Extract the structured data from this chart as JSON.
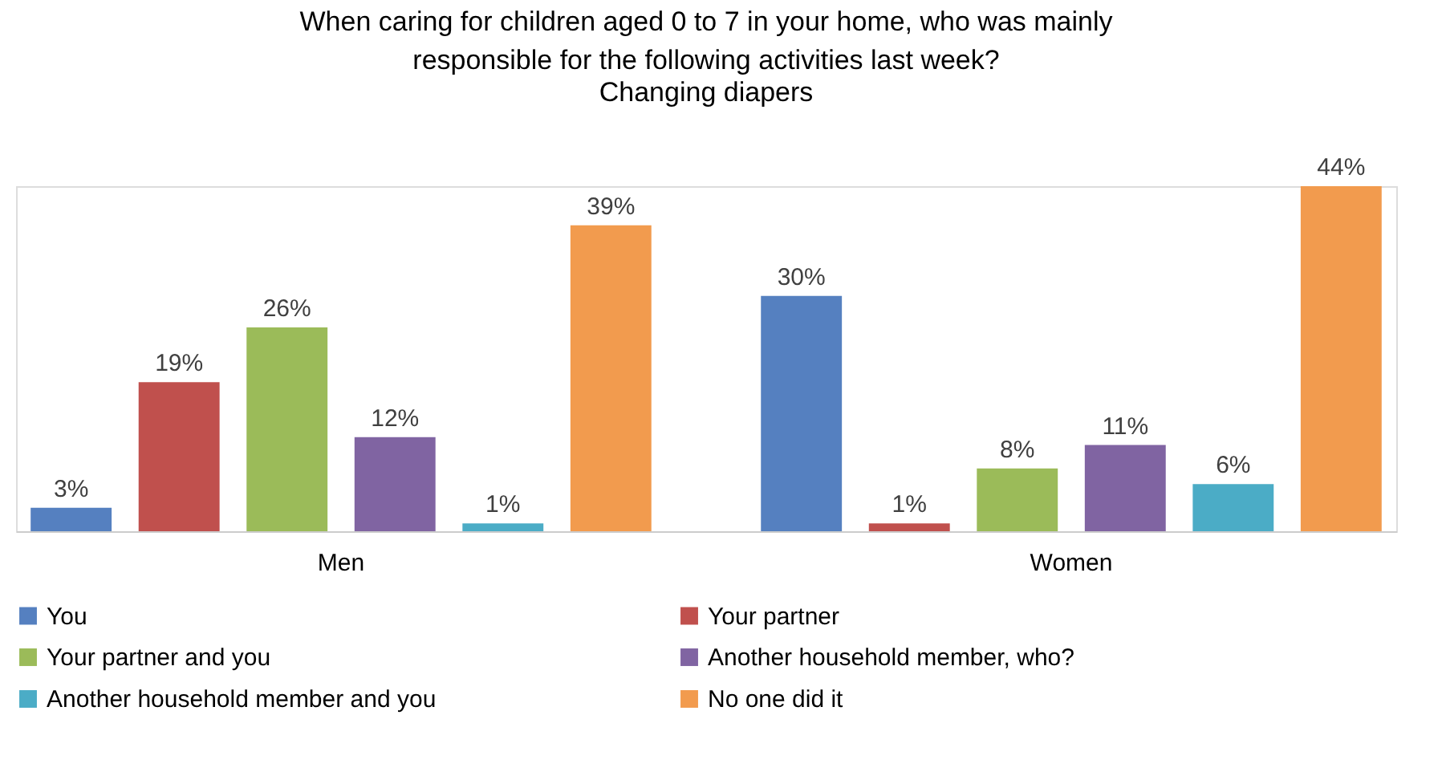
{
  "chart_data": {
    "type": "bar",
    "title": "When caring for children aged 0 to 7 in your home, who was mainly responsible for the following activities last week?",
    "subtitle": "Changing diapers",
    "categories": [
      "Men",
      "Women"
    ],
    "legend": "bottom",
    "grid": false,
    "series": [
      {
        "name": "You",
        "color": "#5580c0",
        "values": [
          3,
          30
        ],
        "value_labels": [
          "3%",
          "30%"
        ]
      },
      {
        "name": "Your partner",
        "color": "#c0504d",
        "values": [
          19,
          1
        ],
        "value_labels": [
          "19%",
          "1%"
        ]
      },
      {
        "name": "Your partner and you",
        "color": "#9bbb59",
        "values": [
          26,
          8
        ],
        "value_labels": [
          "26%",
          "8%"
        ]
      },
      {
        "name": "Another household member, who?",
        "color": "#8064a2",
        "values": [
          12,
          11
        ],
        "value_labels": [
          "12%",
          "11%"
        ]
      },
      {
        "name": "Another household member and you",
        "color": "#4bacc6",
        "values": [
          1,
          6
        ],
        "value_labels": [
          "1%",
          "6%"
        ]
      },
      {
        "name": "No one did it",
        "color": "#f29b4e",
        "values": [
          39,
          44
        ],
        "value_labels": [
          "39%",
          "44%"
        ]
      }
    ]
  }
}
